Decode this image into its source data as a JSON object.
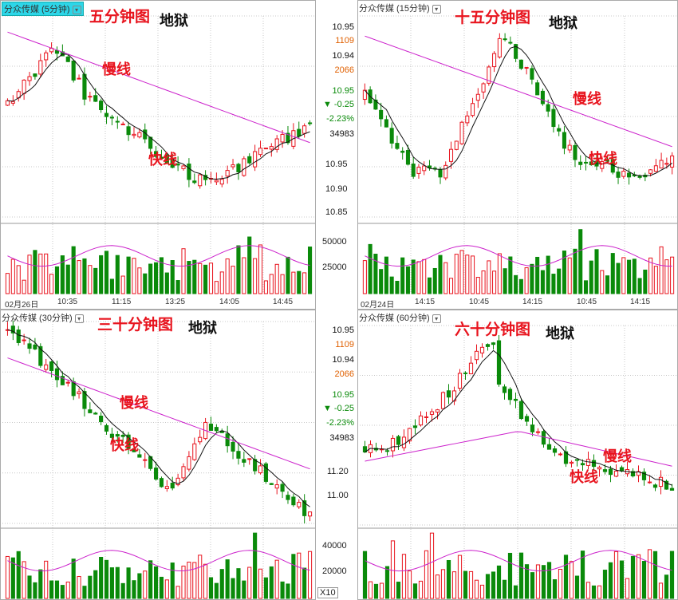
{
  "panels": {
    "p5": {
      "title": "分众传媒 (5分钟)",
      "title_icon": "dropdown-arrow-icon",
      "annotation_title": "五分钟图",
      "annotation_hell": "地狱",
      "annotation_slow": "慢线",
      "annotation_fast": "快线",
      "date_labels": [
        "02月26日",
        "10:35",
        "11:15",
        "13:25",
        "14:05",
        "14:45"
      ]
    },
    "p15": {
      "title": "分众传媒 (15分钟)",
      "title_icon": "dropdown-arrow-icon",
      "annotation_title": "十五分钟图",
      "annotation_hell": "地狱",
      "annotation_slow": "慢线",
      "annotation_fast": "快线",
      "date_labels": [
        "02月24日",
        "14:15",
        "10:45",
        "14:15",
        "10:45",
        "14:15"
      ],
      "price_ticks": [
        "10.95",
        "10.90",
        "10.85"
      ],
      "volume_ticks": [
        "50000",
        "25000"
      ]
    },
    "p30": {
      "title": "分众传媒 (30分钟)",
      "title_icon": "dropdown-arrow-icon",
      "annotation_title": "三十分钟图",
      "annotation_hell": "地狱",
      "annotation_slow": "慢线",
      "annotation_fast": "快线"
    },
    "p60": {
      "title": "分众传媒 (60分钟)",
      "title_icon": "dropdown-arrow-icon",
      "annotation_title": "六十分钟图",
      "annotation_hell": "地狱",
      "annotation_slow": "慢线",
      "annotation_fast": "快线",
      "price_ticks": [
        "11.20",
        "11.00"
      ],
      "volume_ticks": [
        "40000",
        "20000"
      ]
    }
  },
  "quote_top": {
    "price": "10.95",
    "bid_vol": "1109",
    "price2": "10.94",
    "ask_vol": "2066",
    "last": "10.95",
    "change": "▼ -0.25",
    "change_pct": "-2.23%",
    "volume": "34983"
  },
  "quote_bottom": {
    "price": "10.95",
    "bid_vol": "1109",
    "price2": "10.94",
    "ask_vol": "2066",
    "last": "10.95",
    "change": "▼ -0.25",
    "change_pct": "-2.23%",
    "volume": "34983"
  },
  "zoom_badge": "X10",
  "colors": {
    "up": "#e8141e",
    "down": "#0a8a0a",
    "slow_ma": "#cc22cc",
    "fast_ma": "#111111",
    "grid": "#c8c8c8"
  }
}
